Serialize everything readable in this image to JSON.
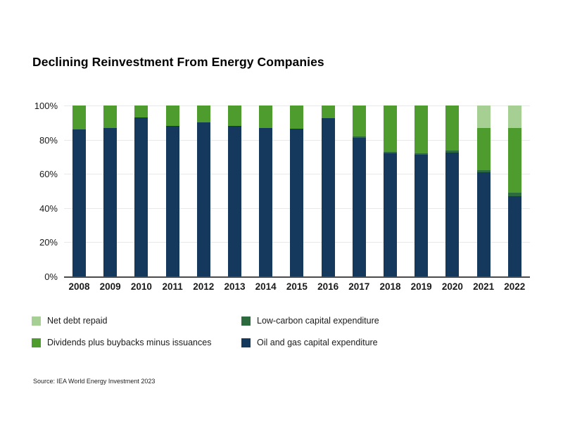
{
  "title": "Declining Reinvestment From Energy Companies",
  "source": "Source: IEA World Energy Investment 2023",
  "colors": {
    "oil_gas": "#14395c",
    "low_carbon": "#2c6b3e",
    "dividends": "#4e9c2e",
    "net_debt": "#a6cf93",
    "gridline": "#e8e8ea",
    "axis": "#4a4a4a"
  },
  "chart_data": {
    "type": "bar",
    "stacked": true,
    "unit": "percent",
    "title": "Declining Reinvestment From Energy Companies",
    "xlabel": "",
    "ylabel": "",
    "ylim": [
      0,
      100
    ],
    "grid": true,
    "legend_position": "bottom",
    "categories": [
      "2008",
      "2009",
      "2010",
      "2011",
      "2012",
      "2013",
      "2014",
      "2015",
      "2016",
      "2017",
      "2018",
      "2019",
      "2020",
      "2021",
      "2022"
    ],
    "yticks": [
      {
        "value": 0,
        "label": "0%"
      },
      {
        "value": 20,
        "label": "20%"
      },
      {
        "value": 40,
        "label": "40%"
      },
      {
        "value": 60,
        "label": "60%"
      },
      {
        "value": 80,
        "label": "80%"
      },
      {
        "value": 100,
        "label": "100%"
      }
    ],
    "series": [
      {
        "name": "Oil and gas capital expenditure",
        "color_key": "oil_gas",
        "values": [
          86,
          87,
          93,
          88,
          90,
          88,
          87,
          86.5,
          92.5,
          81,
          72,
          71,
          72.5,
          61,
          47
        ]
      },
      {
        "name": "Low-carbon capital expenditure",
        "color_key": "low_carbon",
        "values": [
          0,
          0,
          0,
          0,
          0,
          0,
          0,
          0,
          0,
          1,
          1,
          1,
          1,
          1,
          2
        ]
      },
      {
        "name": "Dividends plus buybacks minus issuances",
        "color_key": "dividends",
        "values": [
          14,
          13,
          7,
          12,
          10,
          12,
          13,
          13.5,
          7.5,
          18,
          27,
          28,
          26.5,
          25,
          38
        ]
      },
      {
        "name": "Net debt repaid",
        "color_key": "net_debt",
        "values": [
          0,
          0,
          0,
          0,
          0,
          0,
          0,
          0,
          0,
          0,
          0,
          0,
          0,
          13,
          13
        ]
      }
    ]
  },
  "legend": {
    "items": [
      {
        "label": "Net debt repaid",
        "color_key": "net_debt"
      },
      {
        "label": "Low-carbon capital expenditure",
        "color_key": "low_carbon"
      },
      {
        "label": "Dividends plus buybacks minus issuances",
        "color_key": "dividends"
      },
      {
        "label": "Oil and gas capital expenditure",
        "color_key": "oil_gas"
      }
    ]
  }
}
